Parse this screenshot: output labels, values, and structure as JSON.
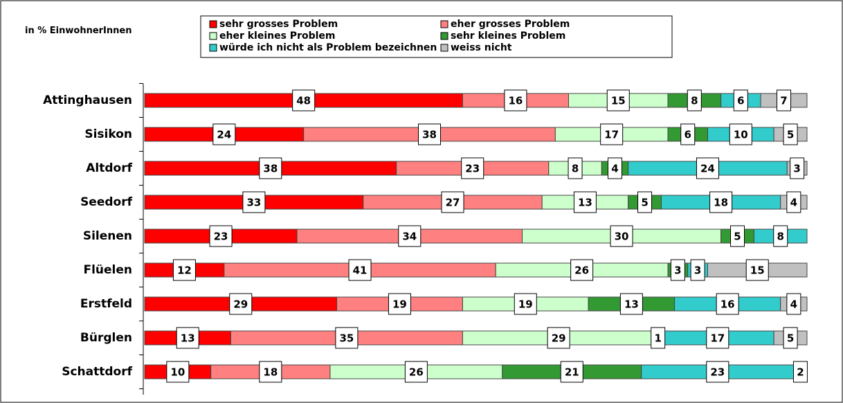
{
  "chart_data": {
    "type": "bar",
    "orientation": "horizontal",
    "stacked": true,
    "unit_label": "in % EinwohnerInnen",
    "categories": [
      "Attinghausen",
      "Sisikon",
      "Altdorf",
      "Seedorf",
      "Silenen",
      "Flüelen",
      "Erstfeld",
      "Bürglen",
      "Schattdorf"
    ],
    "series": [
      {
        "name": "sehr grosses Problem",
        "color": "#ff0000",
        "values": [
          48,
          24,
          38,
          33,
          23,
          12,
          29,
          13,
          10
        ]
      },
      {
        "name": "eher grosses Problem",
        "color": "#ff8080",
        "values": [
          16,
          38,
          23,
          27,
          34,
          41,
          19,
          35,
          18
        ]
      },
      {
        "name": "eher kleines Problem",
        "color": "#ccffcc",
        "values": [
          15,
          17,
          8,
          13,
          30,
          26,
          19,
          29,
          26
        ]
      },
      {
        "name": "sehr kleines Problem",
        "color": "#339933",
        "values": [
          8,
          6,
          4,
          5,
          5,
          3,
          13,
          1,
          21
        ]
      },
      {
        "name": "würde ich nicht als Problem bezeichnen",
        "color": "#33cccc",
        "values": [
          6,
          10,
          24,
          18,
          8,
          3,
          16,
          17,
          23
        ]
      },
      {
        "name": "weiss nicht",
        "color": "#c0c0c0",
        "values": [
          7,
          5,
          3,
          4,
          0,
          15,
          4,
          5,
          2
        ]
      }
    ],
    "xlim": [
      0,
      100
    ],
    "grid": false,
    "legend_position": "top"
  }
}
